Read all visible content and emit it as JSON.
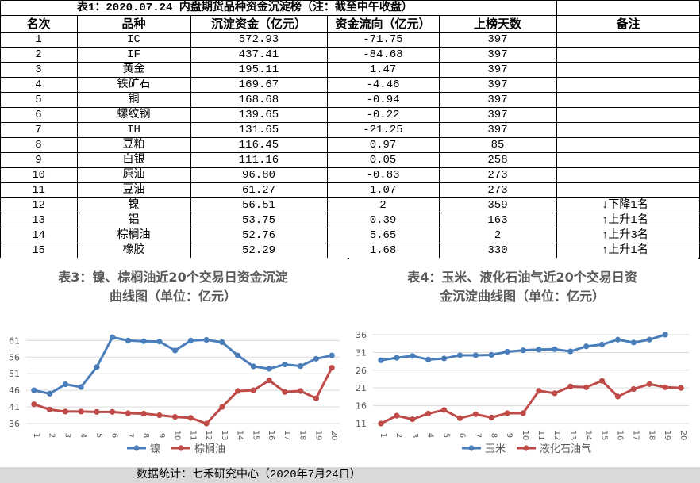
{
  "table": {
    "title": "表1：2020.07.24 内盘期货品种资金沉淀榜（注：截至中午收盘）",
    "headers": [
      "名次",
      "品种",
      "沉淀资金（亿元）",
      "资金流向（亿元）",
      "上榜天数",
      "备注"
    ],
    "rows": [
      {
        "rank": "1",
        "name": "IC",
        "amount": "572.93",
        "flow": "-71.75",
        "days": "397",
        "note": ""
      },
      {
        "rank": "2",
        "name": "IF",
        "amount": "437.41",
        "flow": "-84.68",
        "days": "397",
        "note": ""
      },
      {
        "rank": "3",
        "name": "黄金",
        "amount": "195.11",
        "flow": "1.47",
        "days": "397",
        "note": ""
      },
      {
        "rank": "4",
        "name": "铁矿石",
        "amount": "169.67",
        "flow": "-4.46",
        "days": "397",
        "note": ""
      },
      {
        "rank": "5",
        "name": "铜",
        "amount": "168.68",
        "flow": "-0.94",
        "days": "397",
        "note": ""
      },
      {
        "rank": "6",
        "name": "螺纹钢",
        "amount": "139.65",
        "flow": "-0.22",
        "days": "397",
        "note": ""
      },
      {
        "rank": "7",
        "name": "IH",
        "amount": "131.65",
        "flow": "-21.25",
        "days": "397",
        "note": ""
      },
      {
        "rank": "8",
        "name": "豆粕",
        "amount": "116.45",
        "flow": "0.97",
        "days": "85",
        "note": ""
      },
      {
        "rank": "9",
        "name": "白银",
        "amount": "111.16",
        "flow": "0.05",
        "days": "258",
        "note": ""
      },
      {
        "rank": "10",
        "name": "原油",
        "amount": "96.80",
        "flow": "-0.83",
        "days": "273",
        "note": ""
      },
      {
        "rank": "11",
        "name": "豆油",
        "amount": "61.27",
        "flow": "1.07",
        "days": "273",
        "note": ""
      },
      {
        "rank": "12",
        "name": "镍",
        "amount": "56.51",
        "flow": "2",
        "days": "359",
        "note": "↓下降1名"
      },
      {
        "rank": "13",
        "name": "铝",
        "amount": "53.75",
        "flow": "0.39",
        "days": "163",
        "note": "↑上升1名"
      },
      {
        "rank": "14",
        "name": "棕榈油",
        "amount": "52.76",
        "flow": "5.65",
        "days": "2",
        "note": "↑上升3名"
      },
      {
        "rank": "15",
        "name": "橡胶",
        "amount": "52.29",
        "flow": "1.68",
        "days": "330",
        "note": "↑上升1名"
      }
    ]
  },
  "footer": "数据统计：七禾研究中心（2020年7月24日）",
  "colors": {
    "series1": "#4a7ebb",
    "series2": "#be4b48",
    "grid": "#d9d9d9",
    "footer_bg": "#d9d9d9",
    "axis_text": "#595959"
  },
  "chart_data": [
    {
      "type": "line",
      "title_lines": [
        "表3：镍、棕榈油近20个交易日资金沉淀",
        "曲线图（单位：亿元）"
      ],
      "x": [
        "1",
        "2",
        "3",
        "4",
        "5",
        "6",
        "7",
        "8",
        "9",
        "10",
        "11",
        "12",
        "13",
        "14",
        "15",
        "16",
        "17",
        "18",
        "19",
        "20"
      ],
      "yticks": [
        36,
        41,
        46,
        51,
        56,
        61
      ],
      "ylim": [
        36,
        63
      ],
      "grid": true,
      "legend_position": "bottom",
      "series": [
        {
          "name": "镍",
          "values": [
            46.0,
            45.0,
            47.8,
            47.0,
            53.0,
            62.0,
            61.0,
            60.8,
            60.7,
            58.0,
            61.0,
            61.2,
            60.5,
            56.5,
            53.2,
            52.5,
            53.8,
            53.3,
            55.5,
            56.5
          ]
        },
        {
          "name": "棕榈油",
          "values": [
            41.8,
            40.2,
            39.6,
            39.6,
            39.5,
            39.5,
            39.1,
            39.0,
            38.5,
            38.0,
            37.7,
            36.0,
            41.0,
            45.8,
            46.0,
            49.0,
            45.5,
            45.8,
            43.6,
            52.8
          ]
        }
      ]
    },
    {
      "type": "line",
      "title_lines": [
        "表4：玉米、液化石油气近20个交易日资",
        "金沉淀曲线图（单位：亿元）"
      ],
      "x": [
        "1",
        "2",
        "3",
        "4",
        "5",
        "6",
        "7",
        "8",
        "9",
        "10",
        "11",
        "12",
        "13",
        "14",
        "15",
        "16",
        "17",
        "18",
        "19",
        "20"
      ],
      "yticks": [
        11,
        16,
        21,
        26,
        31,
        36
      ],
      "ylim": [
        11,
        38
      ],
      "grid": true,
      "legend_position": "bottom",
      "series": [
        {
          "name": "玉米",
          "values": [
            28.8,
            29.5,
            30.0,
            29.0,
            29.3,
            30.2,
            30.2,
            30.3,
            31.2,
            31.6,
            31.8,
            31.9,
            31.3,
            32.7,
            33.2,
            34.6,
            33.8,
            34.6,
            36.0,
            null
          ]
        },
        {
          "name": "液化石油气",
          "values": [
            11.0,
            13.2,
            12.2,
            13.8,
            14.8,
            12.5,
            13.6,
            12.7,
            13.9,
            13.9,
            20.2,
            19.5,
            21.4,
            21.2,
            23.0,
            18.6,
            20.7,
            22.1,
            21.2,
            21.0
          ]
        }
      ]
    }
  ]
}
